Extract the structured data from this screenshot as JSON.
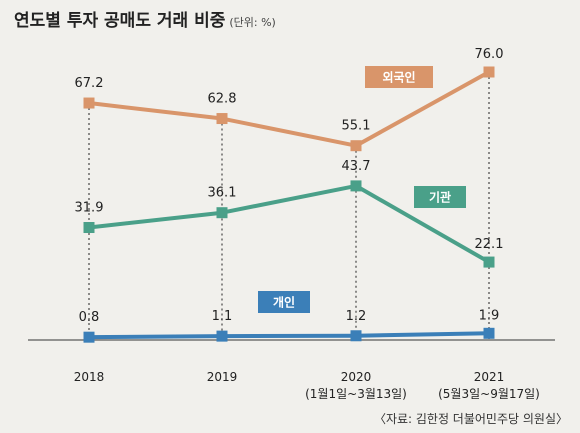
{
  "header": {
    "title": "연도별 투자 공매도 거래 비중",
    "unit": "(단위: %)"
  },
  "source": "〈자료: 김한정 더불어민주당 의원실〉",
  "chart_data": {
    "type": "line",
    "title": "연도별 투자 공매도 거래 비중",
    "unit": "(단위: %)",
    "categories": [
      "2018",
      "2019",
      "2020",
      "2021"
    ],
    "category_sublabels": [
      "",
      "",
      "(1월1일~3월13일)",
      "(5월3일~9월17일)"
    ],
    "ylim": [
      0,
      80
    ],
    "grid": false,
    "series": [
      {
        "name": "외국인",
        "color": "#d9956a",
        "values": [
          67.2,
          62.8,
          55.1,
          76.0
        ],
        "labels": [
          "67.2",
          "62.8",
          "55.1",
          "76.0"
        ]
      },
      {
        "name": "기관",
        "color": "#4aa089",
        "values": [
          31.9,
          36.1,
          43.7,
          22.1
        ],
        "labels": [
          "31.9",
          "36.1",
          "43.7",
          "22.1"
        ]
      },
      {
        "name": "개인",
        "color": "#3b7fb8",
        "values": [
          0.8,
          1.1,
          1.2,
          1.9
        ],
        "labels": [
          "0.8",
          "1.1",
          "1.2",
          "1.9"
        ]
      }
    ]
  }
}
